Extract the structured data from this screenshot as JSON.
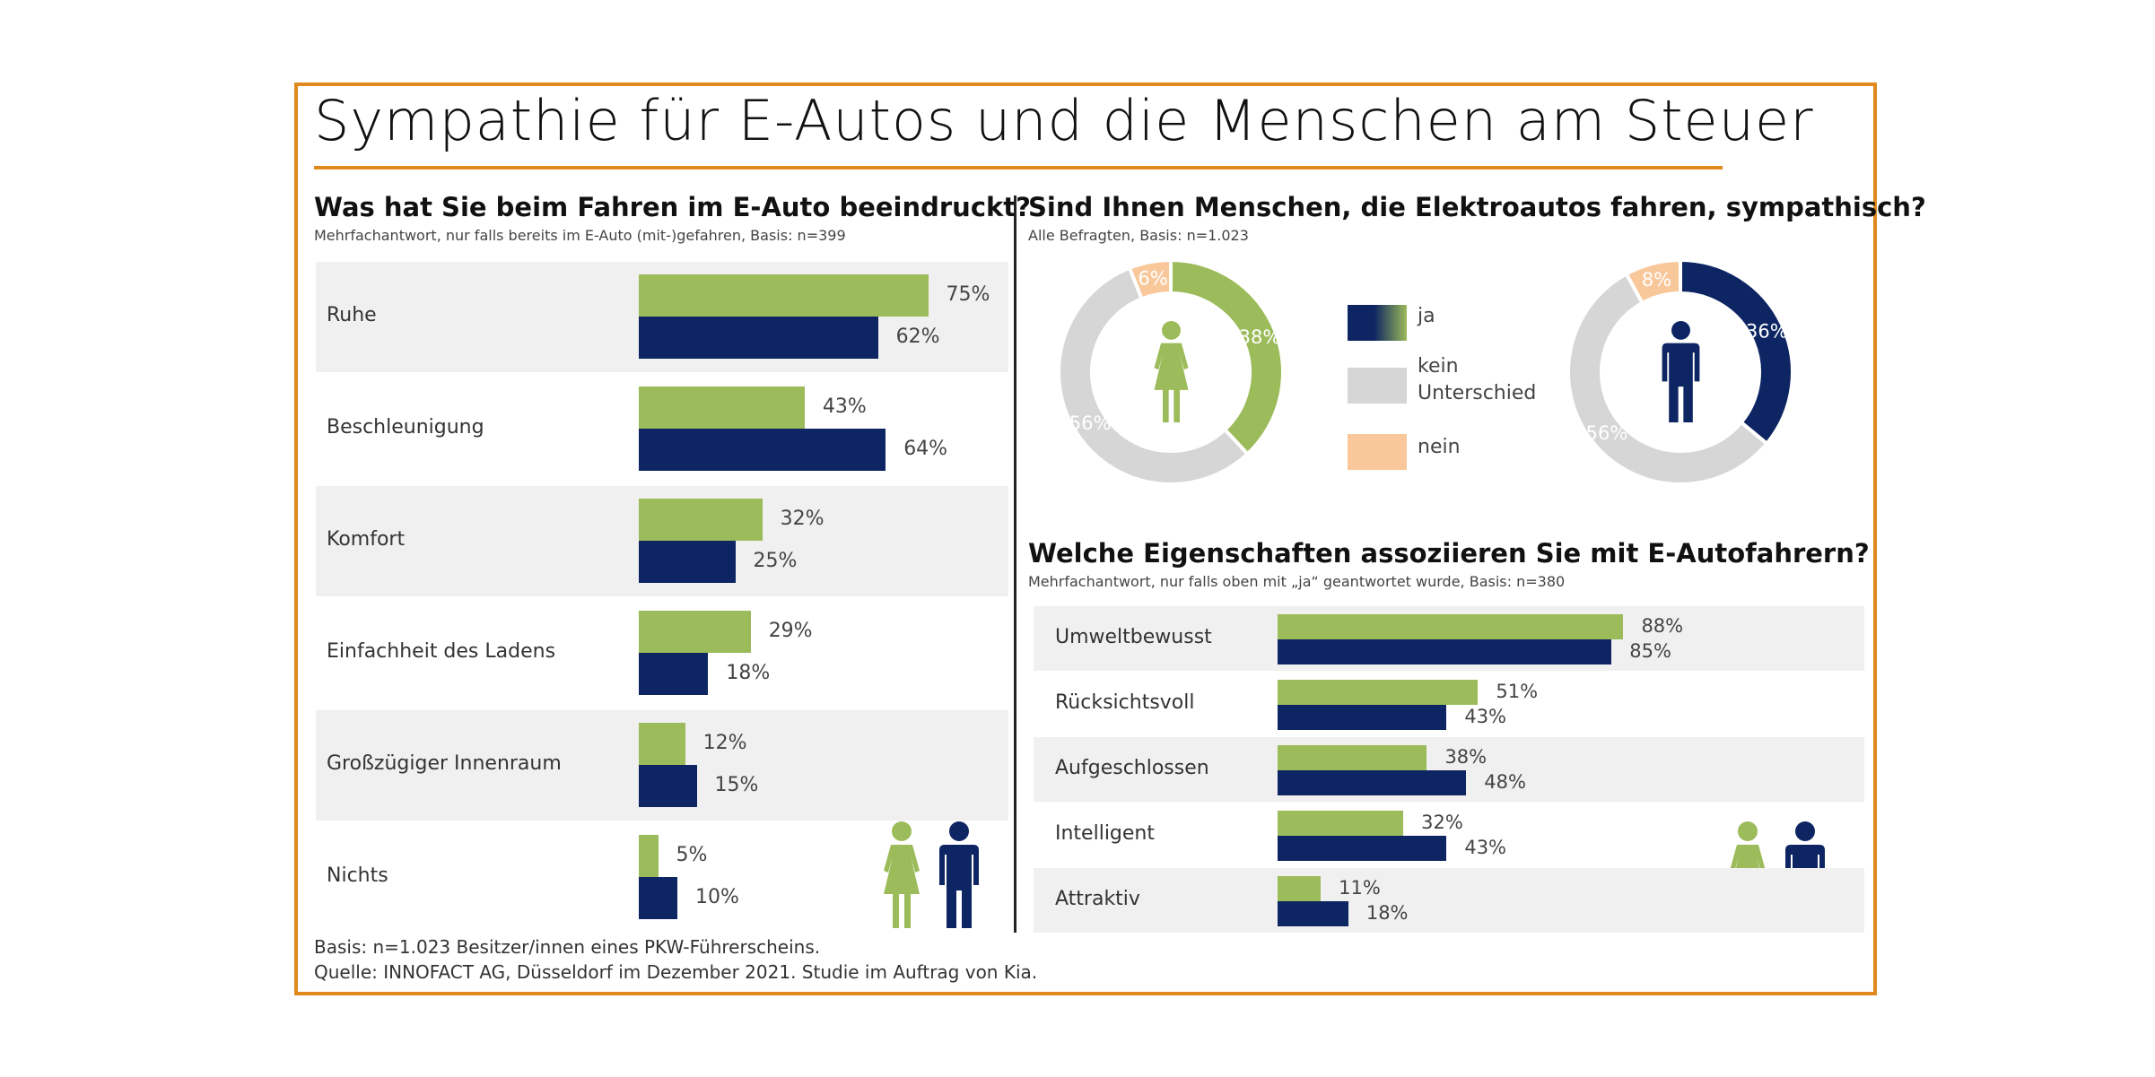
{
  "title": "Sympathie für E-Autos und die Menschen am Steuer",
  "colors": {
    "female": "#9cbb5a",
    "male": "#0d2562",
    "neutral": "#d6d6d6",
    "nein": "#f8c89b",
    "frame": "#e08a1e",
    "row_shade": "#f0f0f0"
  },
  "left": {
    "heading": "Was hat Sie beim Fahren im E-Auto beeindruckt?",
    "subheading": "Mehrfachantwort, nur falls bereits im E-Auto (mit-)gefahren, Basis: n=399"
  },
  "right_top": {
    "heading": "Sind Ihnen Menschen, die Elektroautos fahren, sympathisch?",
    "subheading": "Alle Befragten, Basis: n=1.023",
    "legend": [
      {
        "key": "ja",
        "label": "ja"
      },
      {
        "key": "kein",
        "label": "kein Unterschied"
      },
      {
        "key": "nein",
        "label": "nein"
      }
    ]
  },
  "right_bottom": {
    "heading": "Welche Eigenschaften assoziieren Sie mit E-Autofahrern?",
    "subheading": "Mehrfachantwort, nur falls oben mit „ja“ geantwortet wurde, Basis: n=380"
  },
  "footer": {
    "line1": "Basis: n=1.023 Besitzer/innen eines PKW-Führerscheins.",
    "line2": "Quelle: INNOFACT AG, Düsseldorf im Dezember 2021. Studie im Auftrag von Kia."
  },
  "chart_data": [
    {
      "type": "bar",
      "orientation": "horizontal",
      "title": "Was hat Sie beim Fahren im E-Auto beeindruckt?",
      "categories": [
        "Ruhe",
        "Beschleunigung",
        "Komfort",
        "Einfachheit des Ladens",
        "Großzügiger Innenraum",
        "Nichts"
      ],
      "series": [
        {
          "name": "Frauen",
          "values": [
            75,
            43,
            32,
            29,
            12,
            5
          ]
        },
        {
          "name": "Männer",
          "values": [
            62,
            64,
            25,
            18,
            15,
            10
          ]
        }
      ],
      "unit": "%",
      "xlim": [
        0,
        100
      ]
    },
    {
      "type": "pie",
      "variant": "donut",
      "title": "Sind Ihnen Menschen, die Elektroautos fahren, sympathisch? (Frauen)",
      "slices": [
        {
          "label": "ja",
          "value": 38
        },
        {
          "label": "kein Unterschied",
          "value": 56
        },
        {
          "label": "nein",
          "value": 6
        }
      ],
      "unit": "%"
    },
    {
      "type": "pie",
      "variant": "donut",
      "title": "Sind Ihnen Menschen, die Elektroautos fahren, sympathisch? (Männer)",
      "slices": [
        {
          "label": "ja",
          "value": 36
        },
        {
          "label": "kein Unterschied",
          "value": 56
        },
        {
          "label": "nein",
          "value": 8
        }
      ],
      "unit": "%"
    },
    {
      "type": "bar",
      "orientation": "horizontal",
      "title": "Welche Eigenschaften assoziieren Sie mit E-Autofahrern?",
      "categories": [
        "Umweltbewusst",
        "Rücksichtsvoll",
        "Aufgeschlossen",
        "Intelligent",
        "Attraktiv"
      ],
      "series": [
        {
          "name": "Frauen",
          "values": [
            88,
            51,
            38,
            32,
            11
          ]
        },
        {
          "name": "Männer",
          "values": [
            85,
            43,
            48,
            43,
            18
          ]
        }
      ],
      "unit": "%",
      "xlim": [
        0,
        100
      ]
    }
  ]
}
